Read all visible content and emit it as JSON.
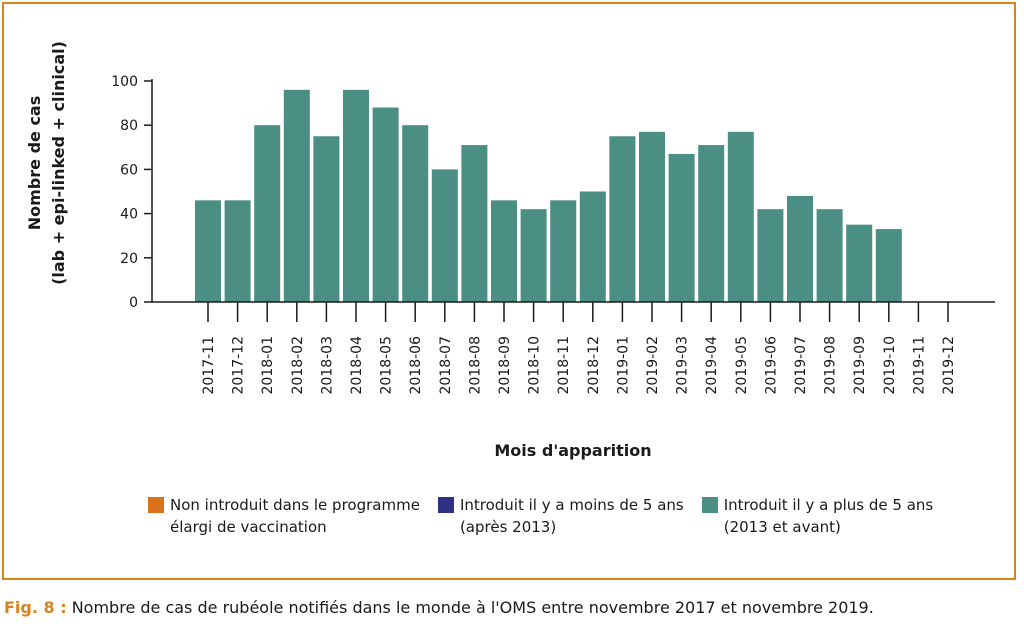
{
  "chart_data": {
    "type": "bar",
    "ylabel": "Nombre de cas",
    "ylabel2": "(lab + epi-linked + clinical)",
    "xlabel": "Mois d'apparition",
    "ylim": [
      0,
      100
    ],
    "yticks": [
      0,
      20,
      40,
      60,
      80,
      100
    ],
    "categories": [
      "2017-11",
      "2017-12",
      "2018-01",
      "2018-02",
      "2018-03",
      "2018-04",
      "2018-05",
      "2018-06",
      "2018-07",
      "2018-08",
      "2018-09",
      "2018-10",
      "2018-11",
      "2018-12",
      "2019-01",
      "2019-02",
      "2019-03",
      "2019-04",
      "2019-05",
      "2019-06",
      "2019-07",
      "2019-08",
      "2019-09",
      "2019-10",
      "2019-11",
      "2019-12"
    ],
    "series": [
      {
        "name": "Non introduit dans le programme\nélargi de vaccination",
        "color": "#d9731a",
        "values": [
          0,
          0,
          0,
          0,
          0,
          0,
          0,
          0,
          0,
          0,
          0,
          0,
          0,
          0,
          0,
          0,
          0,
          0,
          0,
          0,
          0,
          0,
          0,
          0,
          0,
          0
        ]
      },
      {
        "name": "Introduit il y a moins de 5 ans\n(après 2013)",
        "color": "#2e3184",
        "values": [
          0,
          0,
          0,
          0,
          0,
          0,
          0,
          0,
          0,
          0,
          0,
          0,
          0,
          0,
          0,
          0,
          0,
          0,
          0,
          0,
          0,
          0,
          0,
          0,
          0,
          0
        ]
      },
      {
        "name": "Introduit il y a plus de 5 ans\n(2013 et avant)",
        "color": "#4a8e84",
        "values": [
          46,
          46,
          80,
          96,
          75,
          96,
          88,
          80,
          60,
          71,
          46,
          42,
          46,
          50,
          75,
          77,
          67,
          71,
          77,
          42,
          48,
          42,
          35,
          33,
          0,
          0
        ]
      }
    ],
    "grid": false,
    "legend": "bottom"
  },
  "caption": {
    "fig_label": "Fig. 8 :",
    "text": " Nombre de cas de rubéole notifiés dans le monde à l'OMS entre novembre 2017 et novembre 2019."
  }
}
